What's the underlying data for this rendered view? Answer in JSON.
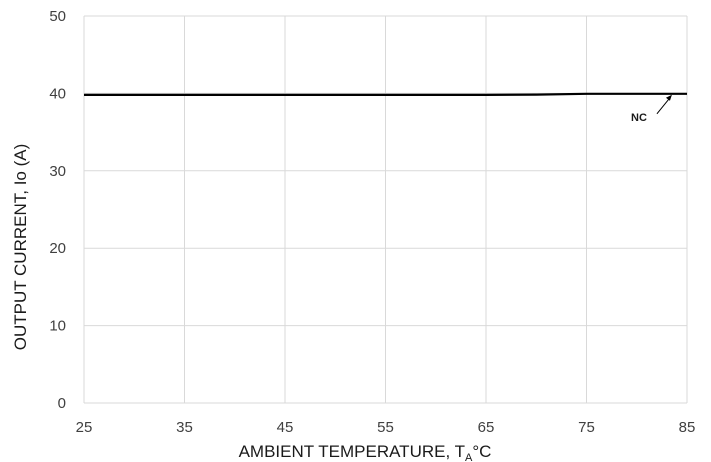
{
  "chart_data": {
    "type": "line",
    "xlabel": "AMBIENT TEMPERATURE, T",
    "xlabel_sub": "A",
    "xlabel_unit": "°C",
    "ylabel": "OUTPUT CURRENT, Io (A)",
    "xlim": [
      25,
      85
    ],
    "ylim": [
      0,
      50
    ],
    "xticks": [
      "25",
      "35",
      "45",
      "55",
      "65",
      "75",
      "85"
    ],
    "yticks": [
      "0",
      "10",
      "20",
      "30",
      "40",
      "50"
    ],
    "grid": true,
    "series": [
      {
        "name": "NC",
        "color": "#000000",
        "x": [
          25,
          35,
          45,
          55,
          65,
          70,
          75,
          85
        ],
        "y": [
          39.8,
          39.8,
          39.8,
          39.8,
          39.8,
          39.85,
          39.95,
          39.95
        ]
      }
    ],
    "annotations": [
      {
        "text": "NC",
        "x": 83.5,
        "y": 39.95
      }
    ]
  }
}
